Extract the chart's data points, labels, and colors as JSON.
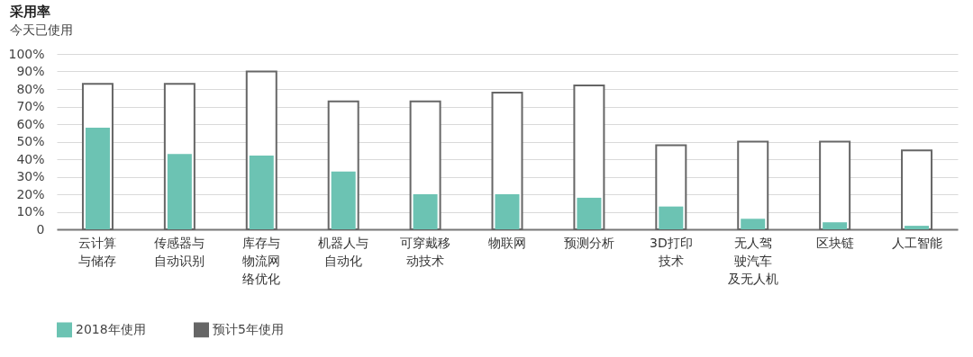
{
  "chart_data": {
    "type": "bar",
    "title": "采用率",
    "subtitle": "今天已使用",
    "categories": [
      "云计算与储存",
      "传感器与自动识别",
      "库存与物流网络优化",
      "机器人与自动化",
      "可穿戴移动技术",
      "物联网",
      "预测分析",
      "3D打印技术",
      "无人驾驶汽车及无人机",
      "区块链",
      "人工智能"
    ],
    "series": [
      {
        "name": "2018年使用",
        "color": "#6cc3b3",
        "values": [
          58,
          43,
          42,
          33,
          20,
          20,
          18,
          13,
          6,
          4,
          2
        ]
      },
      {
        "name": "预计5年使用",
        "color": "#666666",
        "values": [
          83,
          83,
          90,
          73,
          73,
          78,
          82,
          48,
          50,
          50,
          45
        ]
      }
    ],
    "ylim": [
      0,
      100
    ],
    "yticks": [
      {
        "value": 0,
        "label": "0"
      },
      {
        "value": 10,
        "label": "10%"
      },
      {
        "value": 20,
        "label": "20%"
      },
      {
        "value": 30,
        "label": "30%"
      },
      {
        "value": 40,
        "label": "40%"
      },
      {
        "value": 50,
        "label": "50%"
      },
      {
        "value": 60,
        "label": "60%"
      },
      {
        "value": 70,
        "label": "70%"
      },
      {
        "value": 80,
        "label": "80%"
      },
      {
        "value": 90,
        "label": "90%"
      },
      {
        "value": 100,
        "label": "100%"
      }
    ],
    "grid": "y",
    "legend": "bottom left"
  }
}
